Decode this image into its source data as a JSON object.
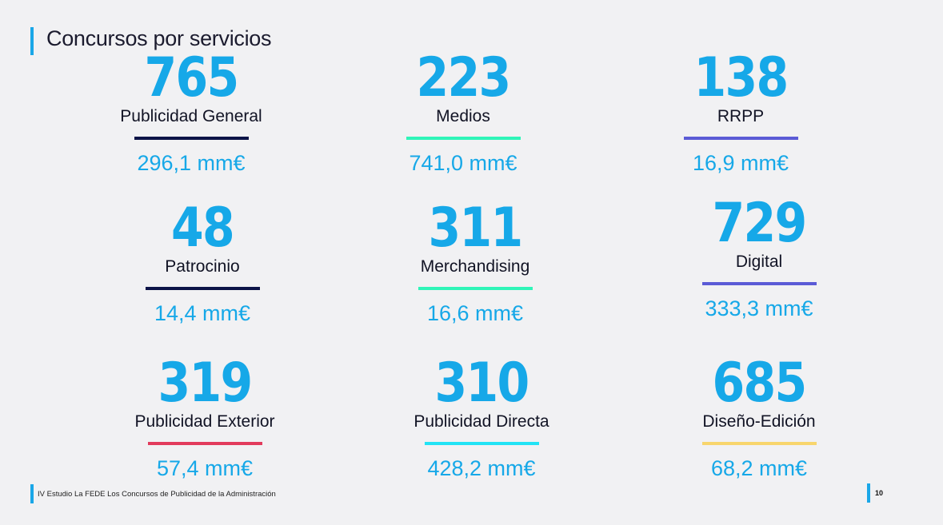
{
  "header": {
    "title": "Concursos por servicios"
  },
  "stats": [
    {
      "number": "765",
      "label": "Publicidad General",
      "amount": "296,1 mm€",
      "color": "#0c1347"
    },
    {
      "number": "223",
      "label": "Medios",
      "amount": "741,0 mm€",
      "color": "#2ff5b8"
    },
    {
      "number": "138",
      "label": "RRPP",
      "amount": "16,9 mm€",
      "color": "#5b5bd6"
    },
    {
      "number": "48",
      "label": "Patrocinio",
      "amount": "14,4 mm€",
      "color": "#0c1347"
    },
    {
      "number": "311",
      "label": "Merchandising",
      "amount": "16,6 mm€",
      "color": "#2ff5b8"
    },
    {
      "number": "729",
      "label": "Digital",
      "amount": "333,3 mm€",
      "color": "#5b5bd6"
    },
    {
      "number": "319",
      "label": "Publicidad Exterior",
      "amount": "57,4 mm€",
      "color": "#e23b5c"
    },
    {
      "number": "310",
      "label": "Publicidad Directa",
      "amount": "428,2 mm€",
      "color": "#22e3f5"
    },
    {
      "number": "685",
      "label": "Diseño-Edición",
      "amount": "68,2 mm€",
      "color": "#f8d56c"
    }
  ],
  "footer": {
    "text": "IV Estudio La FEDE Los Concursos de Publicidad de la Administración",
    "page": "10"
  }
}
